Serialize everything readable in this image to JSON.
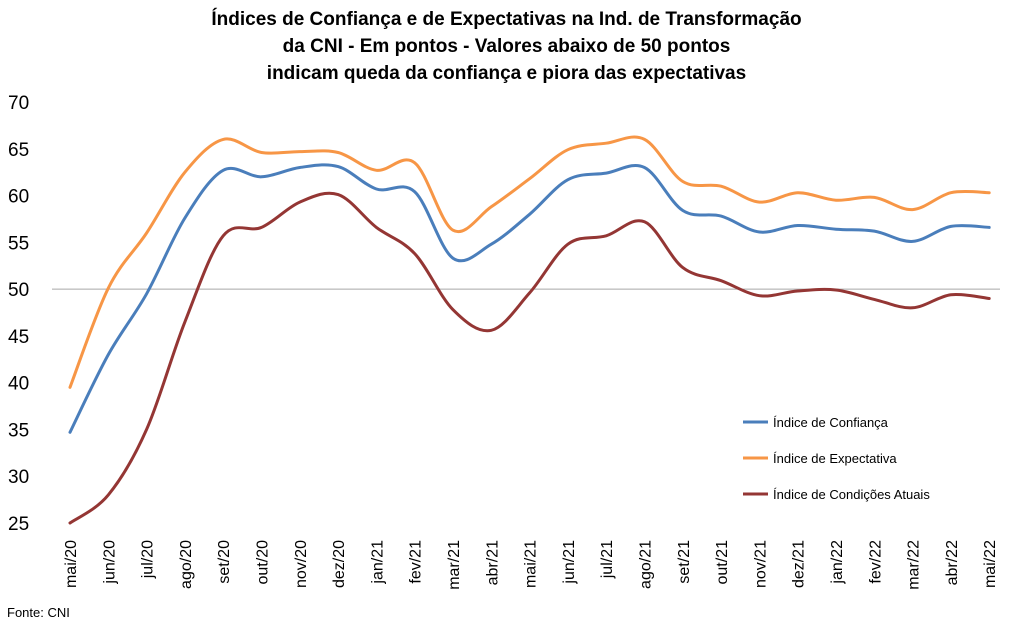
{
  "chart_data": {
    "type": "line",
    "title_lines": [
      "Índices de Confiança e de Expectativas na Ind. de Transformação",
      "da CNI - Em pontos - Valores abaixo de 50 pontos",
      "indicam queda da confiança e piora das expectativas"
    ],
    "categories": [
      "mai/20",
      "jun/20",
      "jul/20",
      "ago/20",
      "set/20",
      "out/20",
      "nov/20",
      "dez/20",
      "jan/21",
      "fev/21",
      "mar/21",
      "abr/21",
      "mai/21",
      "jun/21",
      "jul/21",
      "ago/21",
      "set/21",
      "out/21",
      "nov/21",
      "dez/21",
      "jan/22",
      "fev/22",
      "mar/22",
      "abr/22",
      "mai/22"
    ],
    "ylim": [
      25,
      70
    ],
    "yticks": [
      25,
      30,
      35,
      40,
      45,
      50,
      55,
      60,
      65,
      70
    ],
    "reference_line": 50,
    "legend_position": "right",
    "series": [
      {
        "name": "Índice de Confiança",
        "color": "#4a7ebb",
        "values": [
          34.7,
          43.0,
          49.5,
          57.6,
          62.7,
          62.0,
          63.0,
          63.1,
          60.7,
          60.4,
          53.3,
          54.8,
          58.0,
          61.7,
          62.4,
          63.0,
          58.4,
          57.8,
          56.1,
          56.8,
          56.4,
          56.2,
          55.1,
          56.7,
          56.6
        ]
      },
      {
        "name": "Índice de Expectativa",
        "color": "#f79646",
        "values": [
          39.5,
          50.1,
          56.0,
          62.5,
          66.0,
          64.6,
          64.7,
          64.6,
          62.7,
          63.5,
          56.3,
          58.8,
          61.8,
          64.9,
          65.6,
          66.0,
          61.5,
          61.0,
          59.3,
          60.3,
          59.5,
          59.8,
          58.5,
          60.3,
          60.3
        ]
      },
      {
        "name": "Índice de Condições Atuais",
        "color": "#943634",
        "values": [
          25.0,
          28.0,
          35.0,
          46.5,
          55.7,
          56.6,
          59.3,
          60.1,
          56.6,
          53.8,
          47.8,
          45.6,
          49.6,
          54.8,
          55.7,
          57.2,
          52.3,
          50.9,
          49.3,
          49.8,
          49.9,
          48.9,
          48.0,
          49.4,
          49.0
        ]
      }
    ],
    "source": "Fonte: CNI"
  }
}
